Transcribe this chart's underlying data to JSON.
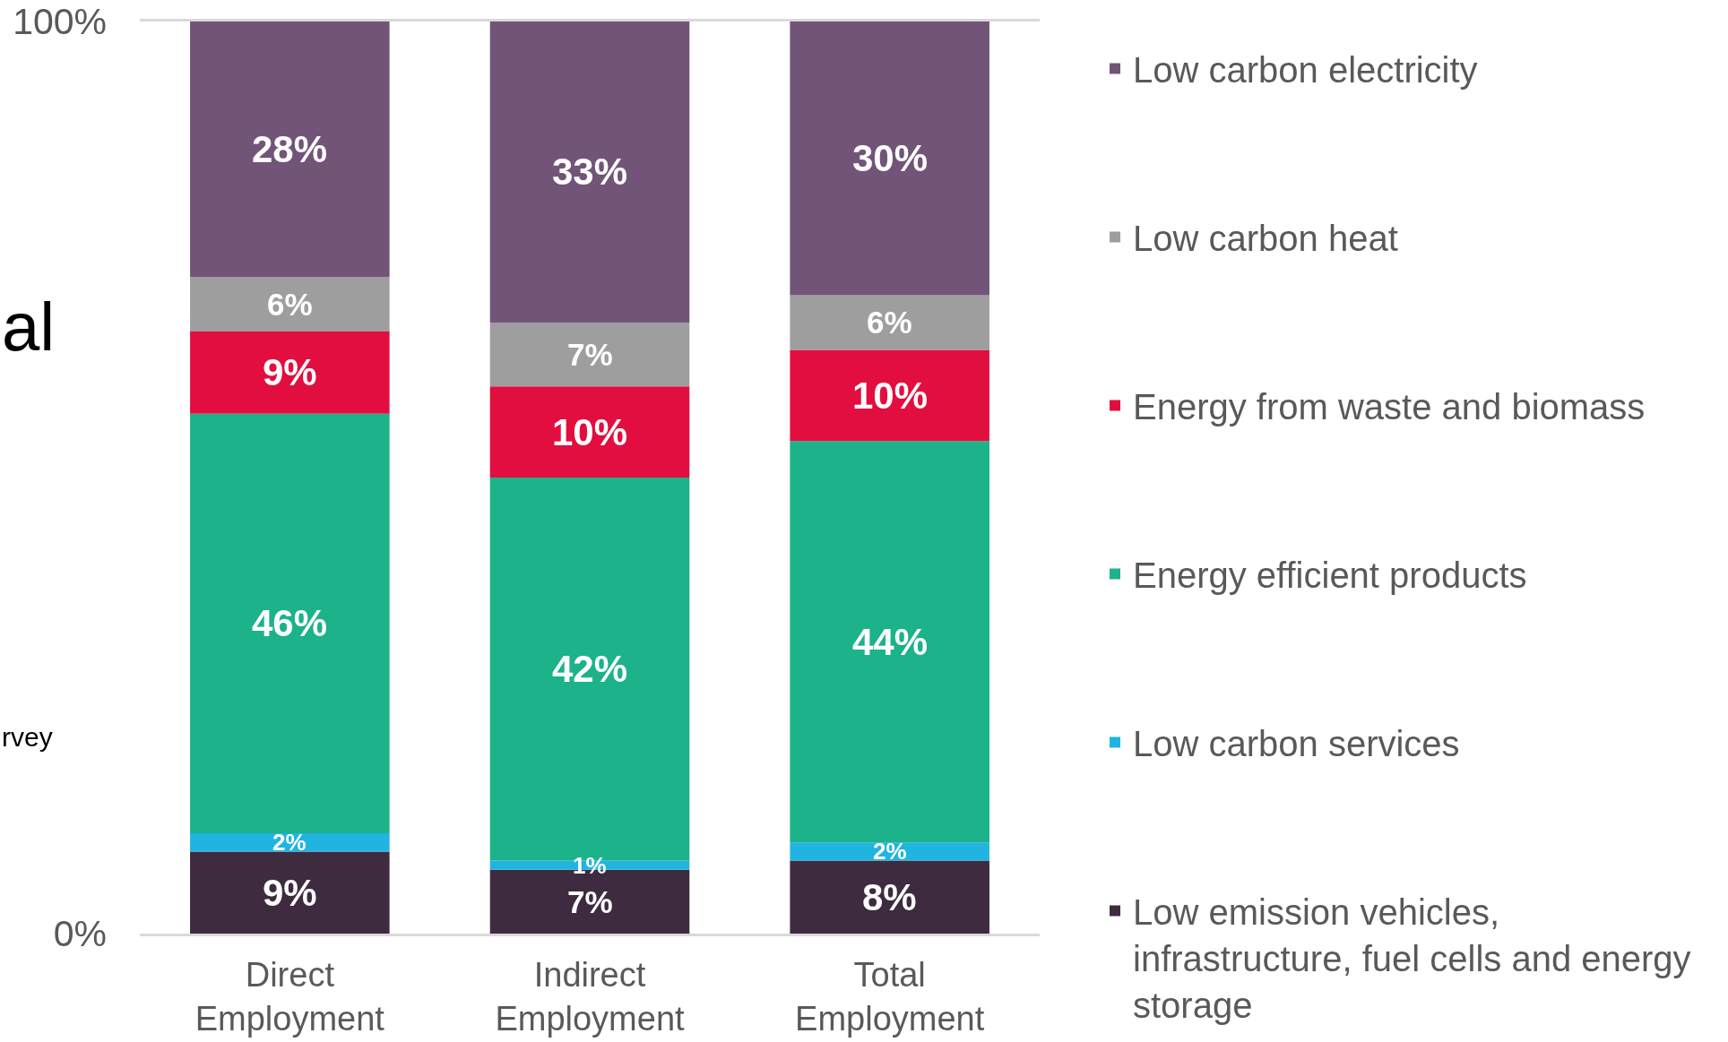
{
  "chart_data": {
    "type": "bar",
    "stacked": true,
    "categories": [
      "Direct Employment",
      "Indirect Employment",
      "Total Employment"
    ],
    "series": [
      {
        "name": "Low emission vehicles, infrastructure, fuel cells and energy storage",
        "color": "#3e2b40",
        "values": [
          9,
          7,
          8
        ],
        "value_labels": [
          "9%",
          "7%",
          "8%"
        ]
      },
      {
        "name": "Low carbon services",
        "color": "#20b4e1",
        "values": [
          2,
          1,
          2
        ],
        "value_labels": [
          "2%",
          "1%",
          "2%"
        ]
      },
      {
        "name": "Energy efficient products",
        "color": "#1cb28a",
        "values": [
          46,
          42,
          44
        ],
        "value_labels": [
          "46%",
          "42%",
          "44%"
        ]
      },
      {
        "name": "Energy from waste and biomass",
        "color": "#e20e3f",
        "values": [
          9,
          10,
          10
        ],
        "value_labels": [
          "9%",
          "10%",
          "10%"
        ]
      },
      {
        "name": "Low carbon heat",
        "color": "#9e9e9e",
        "values": [
          6,
          7,
          6
        ],
        "value_labels": [
          "6%",
          "7%",
          "6%"
        ]
      },
      {
        "name": "Low carbon electricity",
        "color": "#725479",
        "values": [
          28,
          33,
          30
        ],
        "value_labels": [
          "28%",
          "33%",
          "30%"
        ]
      }
    ],
    "ylim": [
      0,
      100
    ],
    "yticks": [
      {
        "value": 0,
        "label": "0%"
      },
      {
        "value": 100,
        "label": "100%"
      }
    ],
    "legend": "right",
    "annotations": [
      "al",
      "rvey"
    ]
  }
}
